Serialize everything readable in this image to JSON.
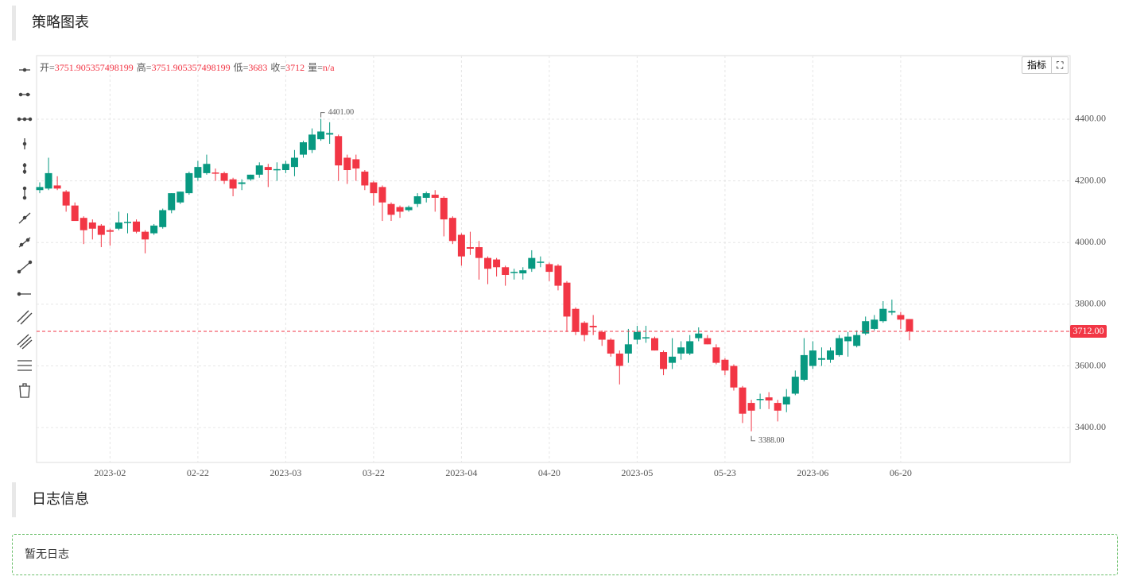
{
  "header": {
    "title": "策略图表"
  },
  "log": {
    "title": "日志信息",
    "empty": "暂无日志"
  },
  "toolbar": {
    "indicator_button": "指标"
  },
  "chart_data": {
    "type": "candlestick",
    "categories": [
      null,
      null,
      null,
      null,
      null,
      null,
      null,
      null,
      "2023-02",
      null,
      null,
      null,
      null,
      null,
      null,
      null,
      null,
      null,
      "02-22",
      null,
      null,
      null,
      null,
      null,
      null,
      null,
      null,
      null,
      "2023-03",
      null,
      null,
      null,
      null,
      null,
      null,
      null,
      null,
      null,
      "03-22",
      null,
      null,
      null,
      null,
      null,
      null,
      null,
      null,
      null,
      "2023-04",
      null,
      null,
      null,
      null,
      null,
      null,
      null,
      null,
      null,
      "04-20",
      null,
      null,
      null,
      null,
      null,
      null,
      null,
      null,
      null,
      "2023-05",
      null,
      null,
      null,
      null,
      null,
      null,
      null,
      null,
      null,
      "05-23",
      null,
      null,
      null,
      null,
      null,
      null,
      null,
      null,
      null,
      "2023-06",
      null,
      null,
      null,
      null,
      null,
      null,
      null,
      null,
      null,
      "06-20",
      null
    ],
    "open": [
      4170,
      4175,
      4185,
      4165,
      4120,
      4080,
      4065,
      4055,
      4040,
      4045,
      4065,
      4068,
      4035,
      4030,
      4050,
      4105,
      4130,
      4160,
      4210,
      4225,
      4227,
      4225,
      4205,
      4190,
      4205,
      4220,
      4245,
      4235,
      4235,
      4245,
      4285,
      4300,
      4335,
      4350,
      4345,
      4275,
      4270,
      4230,
      4195,
      4180,
      4125,
      4115,
      4105,
      4125,
      4145,
      4155,
      4145,
      4080,
      4025,
      3985,
      3985,
      3950,
      3945,
      3920,
      3902,
      3900,
      3915,
      3935,
      3930,
      3925,
      3870,
      3785,
      3740,
      3730,
      3710,
      3685,
      3640,
      3640,
      3685,
      3690,
      3690,
      3645,
      3610,
      3640,
      3640,
      3690,
      3690,
      3660,
      3620,
      3600,
      3530,
      3480,
      3490,
      3498,
      3480,
      3475,
      3510,
      3555,
      3600,
      3620,
      3620,
      3635,
      3680,
      3665,
      3705,
      3720,
      3745,
      3773,
      3765,
      3751.905357498199
    ],
    "high": [
      4195,
      4275,
      4215,
      4170,
      4130,
      4085,
      4075,
      4060,
      4045,
      4100,
      4095,
      4075,
      4040,
      4060,
      4110,
      4160,
      4165,
      4230,
      4265,
      4285,
      4240,
      4230,
      4210,
      4205,
      4220,
      4260,
      4255,
      4260,
      4265,
      4300,
      4330,
      4370,
      4401,
      4390,
      4350,
      4285,
      4285,
      4235,
      4200,
      4185,
      4130,
      4120,
      4120,
      4160,
      4165,
      4170,
      4150,
      4085,
      4030,
      4035,
      4005,
      3955,
      3950,
      3925,
      3915,
      3920,
      3975,
      3955,
      3935,
      3930,
      3875,
      3790,
      3745,
      3765,
      3715,
      3690,
      3650,
      3720,
      3730,
      3730,
      3695,
      3650,
      3690,
      3680,
      3700,
      3725,
      3700,
      3670,
      3625,
      3605,
      3535,
      3490,
      3510,
      3515,
      3490,
      3525,
      3585,
      3690,
      3680,
      3660,
      3660,
      3700,
      3710,
      3715,
      3760,
      3765,
      3810,
      3815,
      3775,
      3751.905357498199
    ],
    "low": [
      4160,
      4170,
      4170,
      4100,
      4075,
      3995,
      4010,
      3985,
      3990,
      4040,
      4030,
      4030,
      3965,
      4025,
      4045,
      4095,
      4125,
      4155,
      4200,
      4220,
      4200,
      4190,
      4150,
      4170,
      4200,
      4210,
      4180,
      4200,
      4225,
      4215,
      4275,
      4290,
      4330,
      4320,
      4200,
      4190,
      4200,
      4170,
      4120,
      4070,
      4070,
      4080,
      4100,
      4115,
      4130,
      4100,
      4020,
      3995,
      3925,
      3960,
      3880,
      3865,
      3890,
      3860,
      3880,
      3880,
      3905,
      3920,
      3875,
      3845,
      3710,
      3700,
      3680,
      3700,
      3665,
      3630,
      3540,
      3610,
      3670,
      3675,
      3650,
      3570,
      3590,
      3620,
      3635,
      3680,
      3670,
      3605,
      3570,
      3520,
      3415,
      3388,
      3460,
      3460,
      3420,
      3450,
      3505,
      3550,
      3590,
      3600,
      3610,
      3630,
      3630,
      3660,
      3700,
      3715,
      3740,
      3765,
      3720,
      3683
    ],
    "close": [
      4180,
      4225,
      4175,
      4120,
      4070,
      4040,
      4045,
      4025,
      4035,
      4065,
      4067,
      4035,
      4010,
      4055,
      4105,
      4160,
      4165,
      4225,
      4245,
      4255,
      4225,
      4200,
      4175,
      4195,
      4220,
      4250,
      4235,
      4238,
      4255,
      4275,
      4325,
      4350,
      4360,
      4355,
      4250,
      4235,
      4240,
      4185,
      4160,
      4130,
      4090,
      4100,
      4115,
      4150,
      4160,
      4145,
      4075,
      4005,
      3955,
      3980,
      3950,
      3915,
      3920,
      3895,
      3905,
      3910,
      3950,
      3938,
      3905,
      3860,
      3760,
      3710,
      3700,
      3725,
      3685,
      3640,
      3600,
      3670,
      3710,
      3693,
      3650,
      3590,
      3630,
      3660,
      3680,
      3705,
      3670,
      3610,
      3585,
      3530,
      3445,
      3455,
      3493,
      3488,
      3455,
      3500,
      3565,
      3635,
      3650,
      3625,
      3650,
      3690,
      3695,
      3700,
      3745,
      3750,
      3785,
      3778,
      3750,
      3712
    ],
    "up_color": "#089981",
    "down_color": "#f23645",
    "ylim": [
      3287,
      4606
    ],
    "yticks": [
      {
        "value": 3400,
        "label": "3400.00"
      },
      {
        "value": 3600,
        "label": "3600.00"
      },
      {
        "value": 3800,
        "label": "3800.00"
      },
      {
        "value": 4000,
        "label": "4000.00"
      },
      {
        "value": 4200,
        "label": "4200.00"
      },
      {
        "value": 4400,
        "label": "4400.00"
      }
    ],
    "grid": true,
    "last_price": {
      "value": 3712,
      "label": "3712.00"
    },
    "max_marker": {
      "value": 4401,
      "label": "4401.00"
    },
    "min_marker": {
      "value": 3388,
      "label": "3388.00"
    },
    "legend": {
      "labels": [
        "开=",
        "高=",
        "低=",
        "收=",
        "量="
      ],
      "volume": "n/a"
    }
  }
}
